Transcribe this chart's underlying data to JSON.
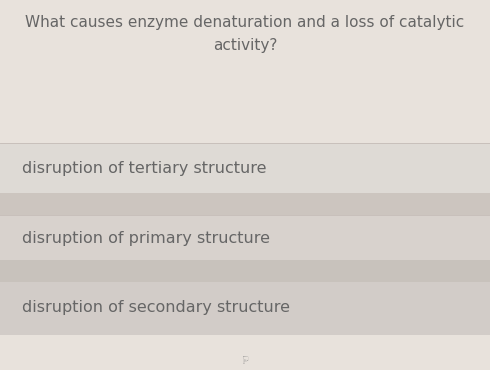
{
  "question_line1": "What causes enzyme denaturation and a loss of catalytic",
  "question_line2": "activity?",
  "options": [
    "disruption of tertiary structure",
    "disruption of primary structure",
    "disruption of secondary structure"
  ],
  "bg_color": "#e8e2dc",
  "option1_bg": "#dedad5",
  "option2_bg": "#d8d2cd",
  "option3_bg": "#d2ccc8",
  "separator_color": "#c8c0bb",
  "question_text_color": "#666666",
  "option_text_color": "#666666",
  "figsize": [
    4.9,
    3.7
  ],
  "dpi": 100,
  "question_fontsize": 11.0,
  "option_fontsize": 11.5
}
